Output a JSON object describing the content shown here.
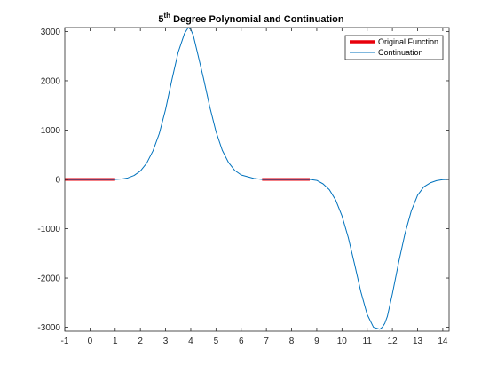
{
  "chart_data": {
    "type": "line",
    "title": {
      "base": "5",
      "sup": "th",
      "rest": " Degree Polynomial and Continuation"
    },
    "xlabel": "",
    "ylabel": "",
    "xlim": [
      -1,
      14.25
    ],
    "ylim": [
      -3080,
      3080
    ],
    "xticks": [
      -1,
      0,
      1,
      2,
      3,
      4,
      5,
      6,
      7,
      8,
      9,
      10,
      11,
      12,
      13,
      14
    ],
    "yticks": [
      -3000,
      -2000,
      -1000,
      0,
      1000,
      2000,
      3000
    ],
    "grid": false,
    "legend": {
      "position": "top-right"
    },
    "series": [
      {
        "name": "Original Function",
        "color": "#e8000b",
        "segments": [
          {
            "x": [
              -1,
              0,
              1
            ],
            "y": [
              0,
              0,
              0
            ]
          },
          {
            "x": [
              6.83,
              7.5,
              8.17,
              8.72
            ],
            "y": [
              0,
              0,
              0,
              0
            ]
          }
        ]
      },
      {
        "name": "Continuation",
        "color": "#0072bd",
        "x": [
          -1,
          0,
          1,
          1.25,
          1.5,
          1.75,
          2,
          2.25,
          2.5,
          2.75,
          3,
          3.25,
          3.5,
          3.75,
          3.9,
          4,
          4.1,
          4.25,
          4.5,
          4.75,
          5,
          5.25,
          5.5,
          5.75,
          6,
          6.5,
          6.83,
          8.72,
          9,
          9.25,
          9.5,
          9.75,
          10,
          10.25,
          10.5,
          10.75,
          11,
          11.25,
          11.5,
          11.6,
          11.7,
          11.8,
          12,
          12.25,
          12.5,
          12.75,
          13,
          13.25,
          13.5,
          13.75,
          14,
          14.25
        ],
        "y": [
          0,
          0,
          0,
          8,
          30,
          80,
          170,
          330,
          580,
          930,
          1420,
          2020,
          2580,
          2960,
          3080,
          3040,
          2920,
          2600,
          2060,
          1480,
          970,
          590,
          340,
          180,
          90,
          20,
          0,
          0,
          -20,
          -90,
          -210,
          -420,
          -740,
          -1180,
          -1720,
          -2280,
          -2740,
          -3000,
          -3040,
          -3000,
          -2920,
          -2780,
          -2320,
          -1680,
          -1100,
          -640,
          -320,
          -150,
          -70,
          -25,
          -5,
          0
        ]
      }
    ]
  }
}
